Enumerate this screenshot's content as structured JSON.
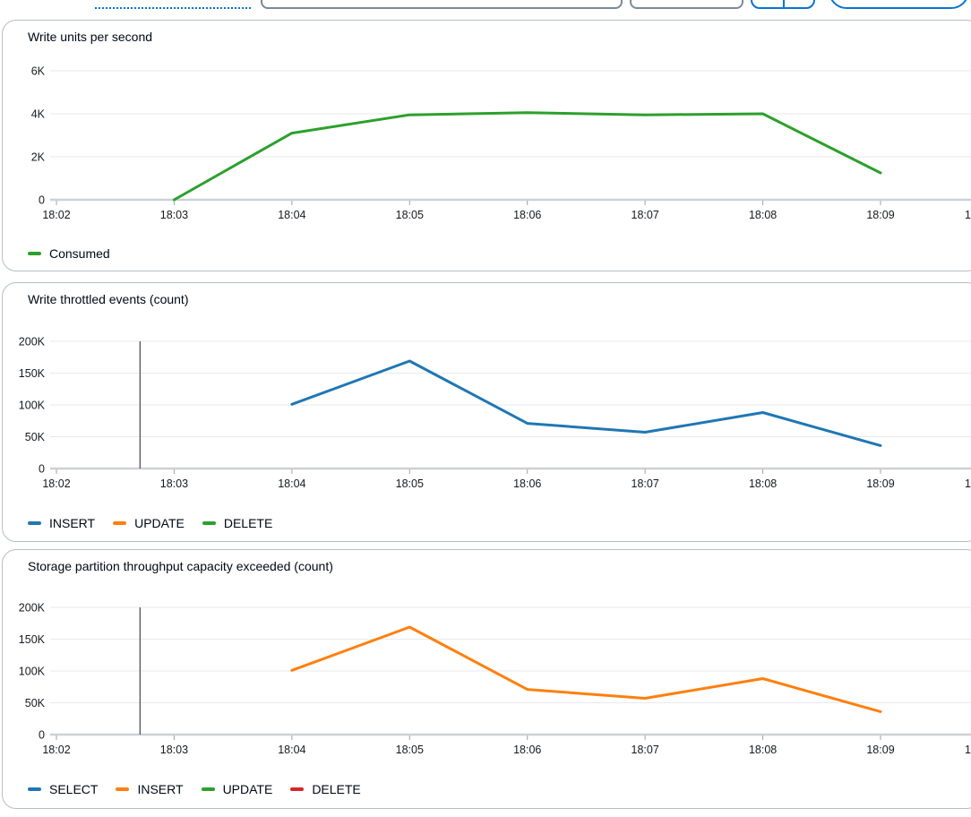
{
  "colors": {
    "accent_blue": "#0972d3",
    "input_border": "#7d8998",
    "panel_border": "#b7bdc6",
    "grid_line": "#e7eaed",
    "axis_line": "#ccd1d6",
    "tick_mark": "#9aa5ad",
    "tick_text": "#16191f",
    "marker_line": "#424650"
  },
  "chart_data": [
    {
      "type": "line",
      "title": "Write units per second",
      "x_labels": [
        "18:02",
        "18:03",
        "18:04",
        "18:05",
        "18:06",
        "18:07",
        "18:08",
        "18:09"
      ],
      "x_overflow_label": "1",
      "ylim": [
        0,
        6000
      ],
      "y_ticks": [
        "6K",
        "4K",
        "2K",
        "0"
      ],
      "grid": true,
      "legend_position": "bottom",
      "series": [
        {
          "name": "Consumed",
          "color": "#2ca02c",
          "x": [
            "18:03",
            "18:04",
            "18:05",
            "18:06",
            "18:07",
            "18:08",
            "18:09"
          ],
          "values": [
            0,
            3100,
            3950,
            4050,
            3950,
            4000,
            1250
          ]
        }
      ],
      "legend": [
        {
          "label": "Consumed",
          "color": "#2ca02c"
        }
      ],
      "marker_line": null
    },
    {
      "type": "line",
      "title": "Write throttled events (count)",
      "x_labels": [
        "18:02",
        "18:03",
        "18:04",
        "18:05",
        "18:06",
        "18:07",
        "18:08",
        "18:09"
      ],
      "x_overflow_label": "1",
      "ylim": [
        0,
        200000
      ],
      "y_ticks": [
        "200K",
        "150K",
        "100K",
        "50K",
        "0"
      ],
      "grid": true,
      "legend_position": "bottom",
      "series": [
        {
          "name": "INSERT",
          "color": "#1f77b4",
          "x": [
            "18:04",
            "18:05",
            "18:06",
            "18:07",
            "18:08",
            "18:09"
          ],
          "values": [
            101000,
            169000,
            71000,
            57000,
            88000,
            36000
          ]
        },
        {
          "name": "UPDATE",
          "color": "#ff7f0e",
          "x": [],
          "values": []
        },
        {
          "name": "DELETE",
          "color": "#2ca02c",
          "x": [],
          "values": []
        }
      ],
      "legend": [
        {
          "label": "INSERT",
          "color": "#1f77b4"
        },
        {
          "label": "UPDATE",
          "color": "#ff7f0e"
        },
        {
          "label": "DELETE",
          "color": "#2ca02c"
        }
      ],
      "marker_line": {
        "minutes_after_first_tick": 0.71,
        "color": "#424650"
      }
    },
    {
      "type": "line",
      "title": "Storage partition throughput capacity exceeded (count)",
      "x_labels": [
        "18:02",
        "18:03",
        "18:04",
        "18:05",
        "18:06",
        "18:07",
        "18:08",
        "18:09"
      ],
      "x_overflow_label": "1",
      "ylim": [
        0,
        200000
      ],
      "y_ticks": [
        "200K",
        "150K",
        "100K",
        "50K",
        "0"
      ],
      "grid": true,
      "legend_position": "bottom",
      "series": [
        {
          "name": "SELECT",
          "color": "#1f77b4",
          "x": [],
          "values": []
        },
        {
          "name": "INSERT",
          "color": "#ff7f0e",
          "x": [
            "18:04",
            "18:05",
            "18:06",
            "18:07",
            "18:08",
            "18:09"
          ],
          "values": [
            101000,
            169000,
            71000,
            57000,
            88000,
            36000
          ]
        },
        {
          "name": "UPDATE",
          "color": "#2ca02c",
          "x": [],
          "values": []
        },
        {
          "name": "DELETE",
          "color": "#d62728",
          "x": [],
          "values": []
        }
      ],
      "legend": [
        {
          "label": "SELECT",
          "color": "#1f77b4"
        },
        {
          "label": "INSERT",
          "color": "#ff7f0e"
        },
        {
          "label": "UPDATE",
          "color": "#2ca02c"
        },
        {
          "label": "DELETE",
          "color": "#d62728"
        }
      ],
      "marker_line": {
        "minutes_after_first_tick": 0.71,
        "color": "#424650"
      }
    }
  ]
}
